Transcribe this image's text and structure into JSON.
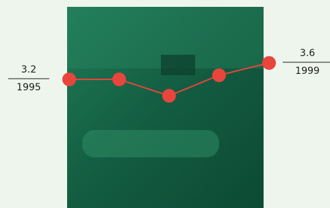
{
  "chart_data": {
    "type": "line",
    "categories": [
      "1995",
      null,
      null,
      null,
      "1999"
    ],
    "values": [
      3.2,
      3.2,
      2.8,
      3.3,
      3.6
    ],
    "color": "#e8453c"
  }
}
